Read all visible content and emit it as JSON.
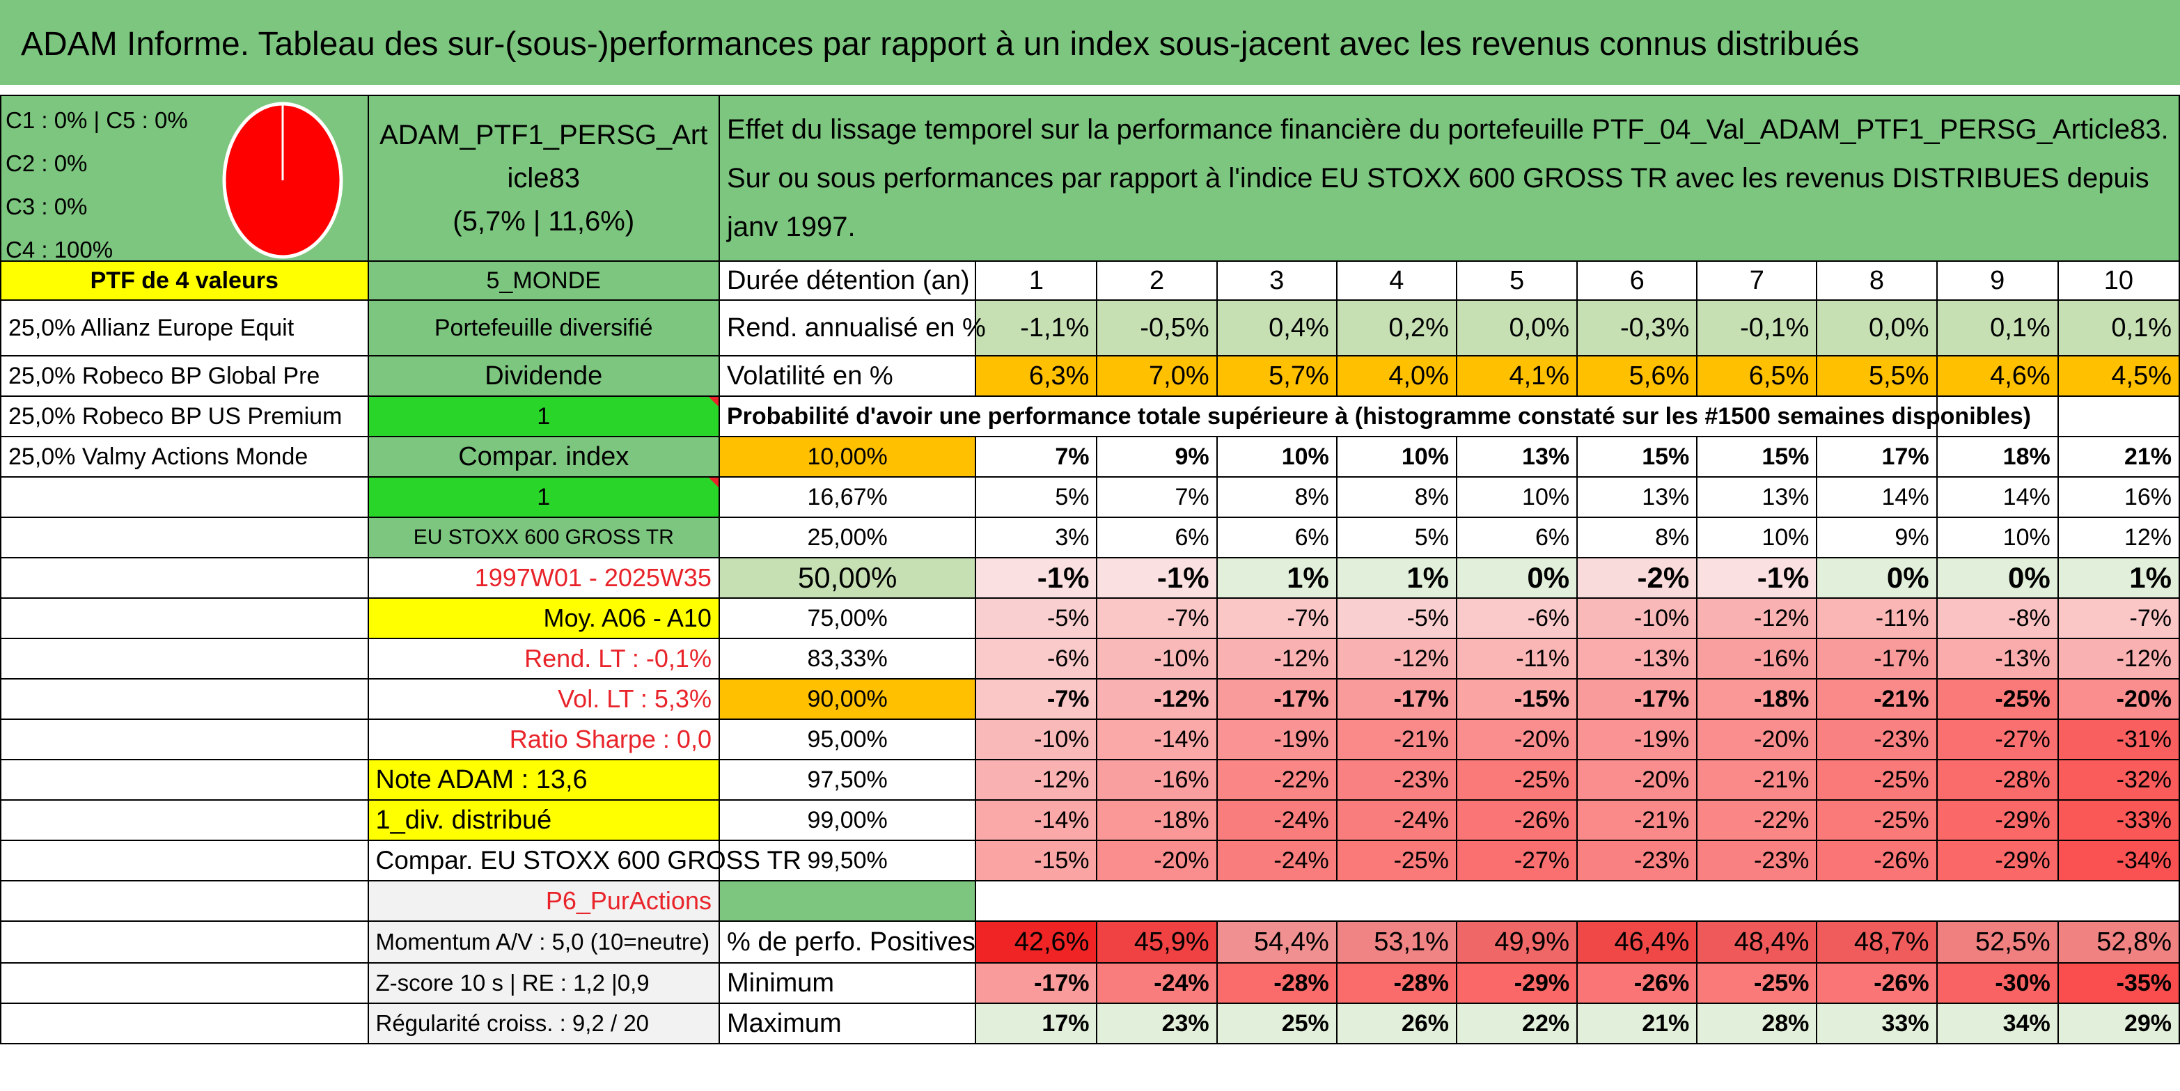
{
  "title": "ADAM Informe. Tableau des sur-(sous-)performances par rapport à un index sous-jacent avec les revenus connus distribués",
  "composition": [
    "C1 : 0% | C5 : 0%",
    "C2 : 0%",
    "C3 : 0%",
    "C4 : 100%"
  ],
  "pie": {
    "color": "#ff0000",
    "slice_c4_pct": 100
  },
  "portfolio": {
    "name": "ADAM_PTF1_PERSG_Article83",
    "perf": "(5,7% | 11,6%)"
  },
  "description": "Effet du lissage temporel sur la performance financière du portefeuille PTF_04_Val_ADAM_PTF1_PERSG_Article83. Sur ou sous performances par rapport à l'indice EU STOXX 600 GROSS TR avec les revenus DISTRIBUES depuis janv 1997.",
  "left": {
    "ptf_label": "PTF de 4 valeurs",
    "holdings": [
      "25,0% Allianz Europe Equit",
      "25,0% Robeco BP Global Pre",
      "25,0% Robeco BP US Premium",
      "25,0% Valmy Actions Monde"
    ]
  },
  "mid": {
    "zone": "5_MONDE",
    "type": "Portefeuille diversifié",
    "dividende": "Dividende",
    "one_a": "1",
    "compar": "Compar. index",
    "one_b": "1",
    "index": "EU STOXX 600 GROSS TR",
    "period": "1997W01 - 2025W35",
    "moy": "Moy. A06 - A10",
    "rend_lt": "Rend. LT : -0,1%",
    "vol_lt": "Vol. LT : 5,3%",
    "sharpe": "Ratio Sharpe : 0,0",
    "note": "Note ADAM : 13,6",
    "div": "1_div. distribué",
    "compar2": "Compar. EU STOXX 600 GROSS TR",
    "p6": "P6_PurActions",
    "momentum": "Momentum A/V : 5,0 (10=neutre)",
    "zscore": "Z-score 10 s | RE : 1,2 |0,9",
    "regularite": "Régularité croiss. : 9,2 / 20"
  },
  "table": {
    "duree_label": "Durée détention (an)",
    "years": [
      "1",
      "2",
      "3",
      "4",
      "5",
      "6",
      "7",
      "8",
      "9",
      "10"
    ],
    "rend_label": "Rend. annualisé en %",
    "rend": [
      "-1,1%",
      "-0,5%",
      "0,4%",
      "0,2%",
      "0,0%",
      "-0,3%",
      "-0,1%",
      "0,0%",
      "0,1%",
      "0,1%"
    ],
    "vol_label": "Volatilité en %",
    "vol": [
      "6,3%",
      "7,0%",
      "5,7%",
      "4,0%",
      "4,1%",
      "5,6%",
      "6,5%",
      "5,5%",
      "4,6%",
      "4,5%"
    ],
    "proba_label": "Probabilité d'avoir une performance totale supérieure à (histogramme constaté sur les #1500 semaines disponibles)",
    "quantiles": [
      {
        "label": "10,00%",
        "values": [
          "7%",
          "9%",
          "10%",
          "10%",
          "13%",
          "15%",
          "15%",
          "17%",
          "18%",
          "21%"
        ]
      },
      {
        "label": "16,67%",
        "values": [
          "5%",
          "7%",
          "8%",
          "8%",
          "10%",
          "13%",
          "13%",
          "14%",
          "14%",
          "16%"
        ]
      },
      {
        "label": "25,00%",
        "values": [
          "3%",
          "6%",
          "6%",
          "5%",
          "6%",
          "8%",
          "10%",
          "9%",
          "10%",
          "12%"
        ]
      },
      {
        "label": "50,00%",
        "values": [
          "-1%",
          "-1%",
          "1%",
          "1%",
          "0%",
          "-2%",
          "-1%",
          "0%",
          "0%",
          "1%"
        ]
      },
      {
        "label": "75,00%",
        "values": [
          "-5%",
          "-7%",
          "-7%",
          "-5%",
          "-6%",
          "-10%",
          "-12%",
          "-11%",
          "-8%",
          "-7%"
        ]
      },
      {
        "label": "83,33%",
        "values": [
          "-6%",
          "-10%",
          "-12%",
          "-12%",
          "-11%",
          "-13%",
          "-16%",
          "-17%",
          "-13%",
          "-12%"
        ]
      },
      {
        "label": "90,00%",
        "values": [
          "-7%",
          "-12%",
          "-17%",
          "-17%",
          "-15%",
          "-17%",
          "-18%",
          "-21%",
          "-25%",
          "-20%"
        ]
      },
      {
        "label": "95,00%",
        "values": [
          "-10%",
          "-14%",
          "-19%",
          "-21%",
          "-20%",
          "-19%",
          "-20%",
          "-23%",
          "-27%",
          "-31%"
        ]
      },
      {
        "label": "97,50%",
        "values": [
          "-12%",
          "-16%",
          "-22%",
          "-23%",
          "-25%",
          "-20%",
          "-21%",
          "-25%",
          "-28%",
          "-32%"
        ]
      },
      {
        "label": "99,00%",
        "values": [
          "-14%",
          "-18%",
          "-24%",
          "-24%",
          "-26%",
          "-21%",
          "-22%",
          "-25%",
          "-29%",
          "-33%"
        ]
      },
      {
        "label": "99,50%",
        "values": [
          "-15%",
          "-20%",
          "-24%",
          "-25%",
          "-27%",
          "-23%",
          "-23%",
          "-26%",
          "-29%",
          "-34%"
        ]
      }
    ],
    "pos_label": "% de perfo. Positives",
    "pos": [
      "42,6%",
      "45,9%",
      "54,4%",
      "53,1%",
      "49,9%",
      "46,4%",
      "48,4%",
      "48,7%",
      "52,5%",
      "52,8%"
    ],
    "min_label": "Minimum",
    "min": [
      "-17%",
      "-24%",
      "-28%",
      "-28%",
      "-29%",
      "-26%",
      "-25%",
      "-26%",
      "-30%",
      "-35%"
    ],
    "max_label": "Maximum",
    "max": [
      "17%",
      "23%",
      "25%",
      "26%",
      "22%",
      "21%",
      "28%",
      "33%",
      "34%",
      "29%"
    ]
  }
}
